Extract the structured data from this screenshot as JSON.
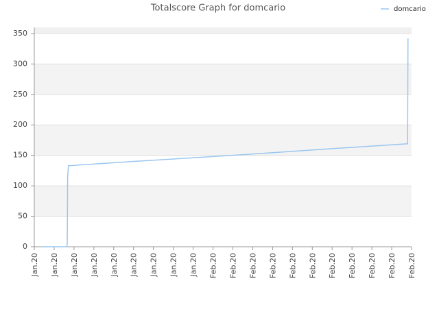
{
  "chart_data": {
    "type": "line",
    "title": "Totalscore Graph for domcario",
    "xlim": [
      0,
      19
    ],
    "xticks": [
      {
        "value": 0,
        "label": "Jan.20"
      },
      {
        "value": 1,
        "label": "Jan.20"
      },
      {
        "value": 2,
        "label": "Jan.20"
      },
      {
        "value": 3,
        "label": "Jan.20"
      },
      {
        "value": 4,
        "label": "Jan.20"
      },
      {
        "value": 5,
        "label": "Jan.20"
      },
      {
        "value": 6,
        "label": "Jan.20"
      },
      {
        "value": 7,
        "label": "Jan.20"
      },
      {
        "value": 8,
        "label": "Jan.20"
      },
      {
        "value": 9,
        "label": "Feb.20"
      },
      {
        "value": 10,
        "label": "Feb.20"
      },
      {
        "value": 11,
        "label": "Feb.20"
      },
      {
        "value": 12,
        "label": "Feb.20"
      },
      {
        "value": 13,
        "label": "Feb.20"
      },
      {
        "value": 14,
        "label": "Feb.20"
      },
      {
        "value": 15,
        "label": "Feb.20"
      },
      {
        "value": 16,
        "label": "Feb.20"
      },
      {
        "value": 17,
        "label": "Feb.20"
      },
      {
        "value": 18,
        "label": "Feb.20"
      },
      {
        "value": 19,
        "label": "Feb.20"
      }
    ],
    "ylim": [
      0,
      360
    ],
    "yticks": [
      0,
      50,
      100,
      150,
      200,
      250,
      300,
      350
    ],
    "grid": true,
    "legend": "top-right",
    "series": [
      {
        "name": "domcario",
        "color": "#9ac6f0",
        "x": [
          0.35,
          1.63,
          1.66,
          1.68,
          1.72,
          5,
          10,
          15,
          18.8,
          18.82
        ],
        "values": [
          0,
          0,
          5,
          115,
          133,
          140,
          150,
          161,
          169,
          342
        ]
      }
    ]
  }
}
